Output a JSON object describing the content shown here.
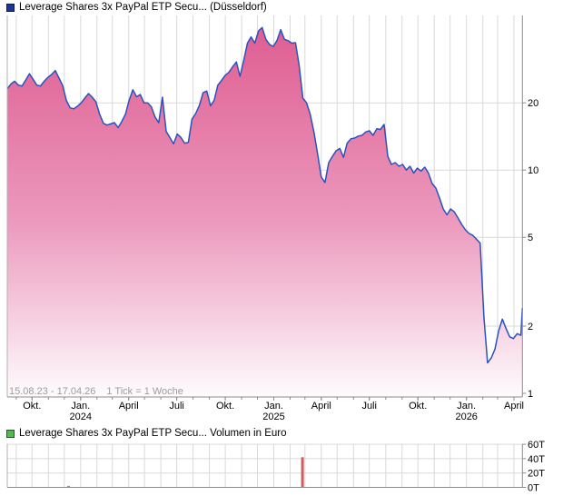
{
  "header": {
    "title": "Leverage Shares 3x PayPal ETP Secu... (Düsseldorf)"
  },
  "volume_header": {
    "title": "Leverage Shares 3x PayPal ETP Secu... Volumen in Euro"
  },
  "footer": {
    "range": "15.08.23 - 17.04.26",
    "tick_info": "1 Tick = 1 Woche"
  },
  "colors": {
    "price_line": "#2a52be",
    "area_top": "#de5e92",
    "area_mid": "#ec98bc",
    "area_bottom": "#fefbfd",
    "grid": "#d9d9d9",
    "axis": "#8c8c8c",
    "frame_left": "#b2b2b2",
    "label": "#000000",
    "muted_text": "#9c9c9c",
    "legend_price_swatch": "#1c3596",
    "legend_price_swatch_border": "#0a1a4a",
    "legend_volume_swatch": "#55b855",
    "legend_volume_swatch_border": "#156515",
    "volume_up": "#5cb85c",
    "volume_down": "#c96060"
  },
  "chart_data": [
    {
      "type": "area",
      "title": "Leverage Shares 3x PayPal ETP Secu... (Düsseldorf)",
      "x_start": "15.08.2023",
      "x_end": "17.04.2026",
      "tick_interval": "1 Woche",
      "yscale": "log",
      "ylim": [
        1,
        49
      ],
      "y_ticks": [
        {
          "v": 1,
          "label": "1"
        },
        {
          "v": 2,
          "label": "2"
        },
        {
          "v": 5,
          "label": "5"
        },
        {
          "v": 10,
          "label": "10"
        },
        {
          "v": 20,
          "label": "20"
        }
      ],
      "x_axis_labels": [
        {
          "day": 47,
          "l1": "Okt."
        },
        {
          "day": 139,
          "l1": "Jan.",
          "l2": "2024"
        },
        {
          "day": 230,
          "l1": "April"
        },
        {
          "day": 321,
          "l1": "Juli"
        },
        {
          "day": 413,
          "l1": "Okt."
        },
        {
          "day": 505,
          "l1": "Jan.",
          "l2": "2025"
        },
        {
          "day": 595,
          "l1": "April"
        },
        {
          "day": 686,
          "l1": "Juli"
        },
        {
          "day": 778,
          "l1": "Okt."
        },
        {
          "day": 870,
          "l1": "Jan.",
          "l2": "2026"
        },
        {
          "day": 960,
          "l1": "April"
        }
      ],
      "month_grid_days": [
        17,
        47,
        78,
        108,
        139,
        170,
        199,
        230,
        260,
        291,
        321,
        352,
        383,
        413,
        444,
        474,
        505,
        536,
        564,
        595,
        625,
        656,
        686,
        717,
        748,
        778,
        809,
        839,
        870,
        901,
        929,
        960
      ],
      "total_days": 976,
      "x_unit": "week",
      "prices": [
        23.1,
        24.3,
        25.0,
        24.0,
        23.8,
        25.3,
        27.0,
        25.5,
        24.0,
        23.8,
        25.0,
        26.0,
        26.8,
        27.9,
        25.8,
        23.9,
        20.5,
        19.0,
        18.8,
        19.3,
        20.0,
        21.0,
        22.0,
        21.2,
        20.2,
        17.8,
        16.2,
        15.9,
        16.1,
        16.3,
        15.5,
        16.5,
        17.8,
        20.6,
        22.9,
        21.3,
        21.8,
        20.0,
        20.0,
        19.2,
        17.3,
        16.3,
        21.2,
        14.9,
        14.0,
        13.1,
        14.5,
        14.0,
        13.2,
        13.3,
        16.9,
        17.9,
        19.5,
        22.2,
        22.6,
        19.4,
        20.5,
        24.0,
        25.2,
        26.6,
        27.4,
        29.0,
        30.5,
        26.3,
        31.0,
        37.0,
        39.5,
        37.0,
        42.0,
        43.5,
        38.5,
        36.5,
        35.8,
        38.0,
        42.5,
        38.5,
        38.0,
        37.0,
        37.2,
        29.5,
        21.0,
        20.0,
        17.8,
        14.8,
        11.8,
        9.3,
        8.8,
        10.8,
        11.5,
        12.2,
        12.5,
        11.4,
        13.2,
        13.8,
        13.9,
        14.2,
        14.3,
        14.8,
        15.0,
        14.3,
        15.3,
        15.2,
        16.0,
        11.5,
        10.6,
        10.8,
        10.4,
        10.6,
        10.0,
        10.4,
        9.7,
        10.2,
        9.9,
        10.3,
        9.7,
        8.7,
        8.3,
        7.5,
        6.7,
        6.3,
        6.7,
        6.5,
        6.1,
        5.7,
        5.4,
        5.2,
        5.1,
        4.9,
        4.7,
        2.2,
        1.37,
        1.44,
        1.58,
        1.9,
        2.15,
        1.95,
        1.79,
        1.76,
        1.85,
        1.82,
        2.41
      ]
    },
    {
      "type": "bar",
      "title": "Leverage Shares 3x PayPal ETP Secu... Volumen in Euro",
      "unit": "Euro (Tausend)",
      "ylim": [
        0,
        60
      ],
      "y_ticks": [
        {
          "v": 0,
          "label": "0T"
        },
        {
          "v": 20,
          "label": "20T"
        },
        {
          "v": 40,
          "label": "40T"
        },
        {
          "v": 60,
          "label": "60T"
        }
      ],
      "bars": [
        {
          "week": 16.6,
          "value_thousands": 2,
          "direction": "up"
        },
        {
          "week": 79.9,
          "value_thousands": 42,
          "direction": "down"
        }
      ]
    }
  ]
}
